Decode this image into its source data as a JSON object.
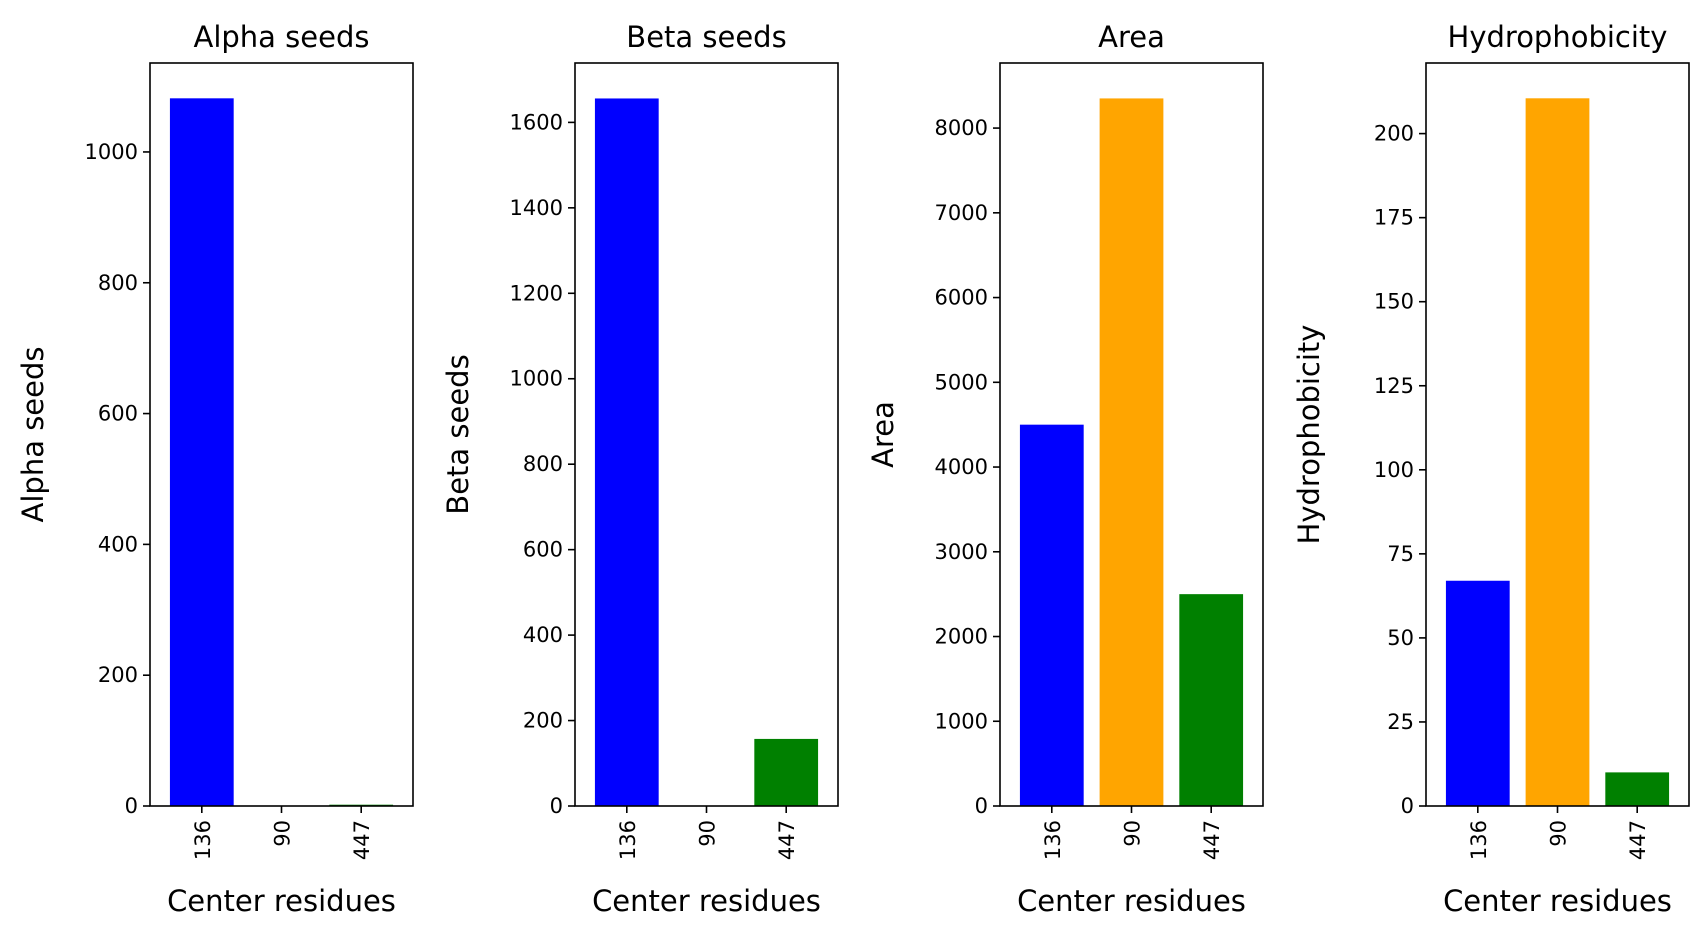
{
  "chart_data": [
    {
      "type": "bar",
      "title": "Alpha seeds",
      "xlabel": "Center residues",
      "ylabel": "Alpha seeds",
      "categories": [
        "136",
        "90",
        "447"
      ],
      "values": [
        1082,
        0,
        2
      ],
      "colors": [
        "#0000ff",
        "#ffa500",
        "#008000"
      ],
      "ylim": [
        0,
        1136
      ],
      "yticks": [
        0,
        200,
        400,
        600,
        800,
        1000
      ],
      "grid": false
    },
    {
      "type": "bar",
      "title": "Beta seeds",
      "xlabel": "Center residues",
      "ylabel": "Beta seeds",
      "categories": [
        "136",
        "90",
        "447"
      ],
      "values": [
        1656,
        0,
        157
      ],
      "colors": [
        "#0000ff",
        "#ffa500",
        "#008000"
      ],
      "ylim": [
        0,
        1739
      ],
      "yticks": [
        0,
        200,
        400,
        600,
        800,
        1000,
        1200,
        1400,
        1600
      ],
      "grid": false
    },
    {
      "type": "bar",
      "title": "Area",
      "xlabel": "Center residues",
      "ylabel": "Area",
      "categories": [
        "136",
        "90",
        "447"
      ],
      "values": [
        4500,
        8350,
        2500
      ],
      "colors": [
        "#0000ff",
        "#ffa500",
        "#008000"
      ],
      "ylim": [
        0,
        8768
      ],
      "yticks": [
        0,
        1000,
        2000,
        3000,
        4000,
        5000,
        6000,
        7000,
        8000
      ],
      "grid": false
    },
    {
      "type": "bar",
      "title": "Hydrophobicity",
      "xlabel": "Center residues",
      "ylabel": "Hydrophobicity",
      "categories": [
        "136",
        "90",
        "447"
      ],
      "values": [
        67,
        210.5,
        10
      ],
      "colors": [
        "#0000ff",
        "#ffa500",
        "#008000"
      ],
      "ylim": [
        0,
        221
      ],
      "yticks": [
        0,
        25,
        50,
        75,
        100,
        125,
        150,
        175,
        200
      ],
      "grid": false
    }
  ]
}
